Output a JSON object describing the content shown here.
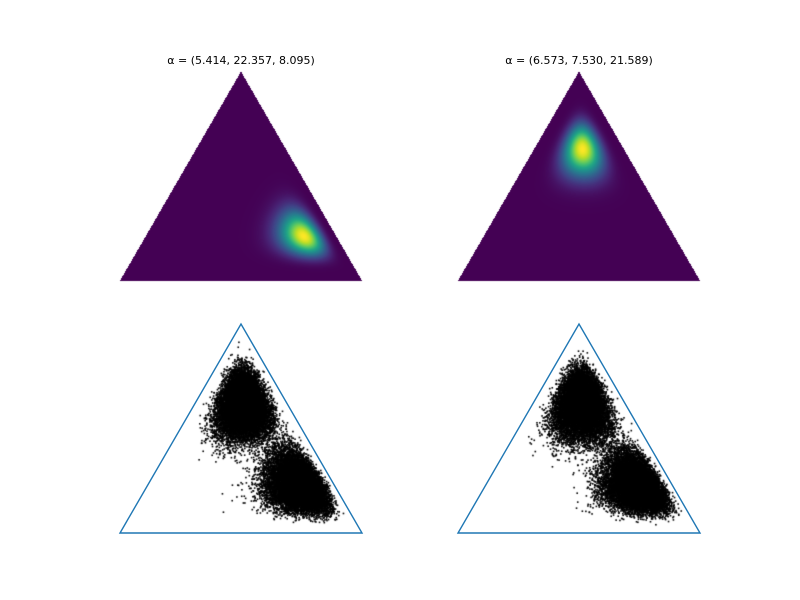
{
  "chart_data": [
    {
      "type": "heatmap",
      "title": "α = (5.414, 22.357, 8.095)",
      "alpha": [
        5.414,
        22.357,
        8.095
      ],
      "colormap": "viridis",
      "grid": false,
      "axes": "off"
    },
    {
      "type": "heatmap",
      "title": "α = (6.573, 7.530, 21.589)",
      "alpha": [
        6.573,
        7.53,
        21.589
      ],
      "colormap": "viridis",
      "grid": false,
      "axes": "off"
    },
    {
      "type": "scatter",
      "title": "",
      "point_color": "#000000",
      "outline_color": "#1f77b4",
      "alphas": [
        [
          5.414,
          22.357,
          8.095
        ],
        [
          6.573,
          7.53,
          21.589
        ]
      ],
      "grid": false,
      "axes": "off"
    },
    {
      "type": "scatter",
      "title": "",
      "point_color": "#000000",
      "outline_color": "#1f77b4",
      "alphas": [
        [
          5.414,
          22.357,
          8.095
        ],
        [
          6.573,
          7.53,
          21.589
        ]
      ],
      "grid": false,
      "axes": "off"
    }
  ]
}
